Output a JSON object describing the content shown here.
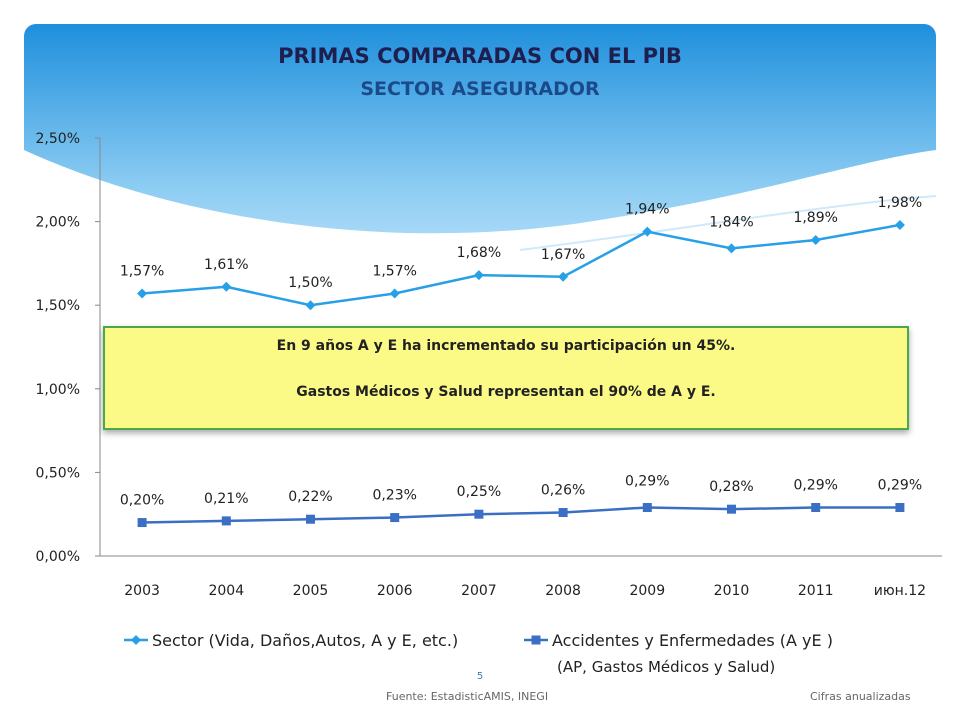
{
  "slide": {
    "title": "PRIMAS COMPARADAS CON EL PIB",
    "subtitle": "SECTOR ASEGURADOR",
    "callout_line1": "En 9 años A y E ha incrementado su participación un  45%.",
    "callout_line2": "Gastos Médicos y Salud representan el 90% de A y E.",
    "page_number": "5",
    "source": "Fuente: EstadisticAMIS,  INEGI",
    "note": "Cifras anualizadas",
    "legend_sub": "(AP, Gastos Médicos y Salud)"
  },
  "colors": {
    "banner_top": "#1e8fdc",
    "banner_mid": "#9fd4f5",
    "sector_line": "#27a0e8",
    "ae_line": "#3a6fc4",
    "callout_fill": "#fbfa87",
    "callout_border": "#4aa84a"
  },
  "chart_data": {
    "type": "line",
    "categories": [
      "2003",
      "2004",
      "2005",
      "2006",
      "2007",
      "2008",
      "2009",
      "2010",
      "2011",
      "июн.12"
    ],
    "y_ticks": [
      "0,00%",
      "0,50%",
      "1,00%",
      "1,50%",
      "2,00%",
      "2,50%"
    ],
    "ylim": [
      0,
      2.5
    ],
    "grid": false,
    "legend_position": "bottom",
    "series": [
      {
        "name": "Sector (Vida, Daños,Autos, A y E, etc.)",
        "marker": "diamond",
        "values": [
          1.57,
          1.61,
          1.5,
          1.57,
          1.68,
          1.67,
          1.94,
          1.84,
          1.89,
          1.98
        ],
        "labels": [
          "1,57%",
          "1,61%",
          "1,50%",
          "1,57%",
          "1,68%",
          "1,67%",
          "1,94%",
          "1,84%",
          "1,89%",
          "1,98%"
        ]
      },
      {
        "name": "Accidentes y Enfermedades (A yE )",
        "marker": "square",
        "values": [
          0.2,
          0.21,
          0.22,
          0.23,
          0.25,
          0.26,
          0.29,
          0.28,
          0.29,
          0.29
        ],
        "labels": [
          "0,20%",
          "0,21%",
          "0,22%",
          "0,23%",
          "0,25%",
          "0,26%",
          "0,29%",
          "0,28%",
          "0,29%",
          "0,29%"
        ]
      }
    ]
  }
}
